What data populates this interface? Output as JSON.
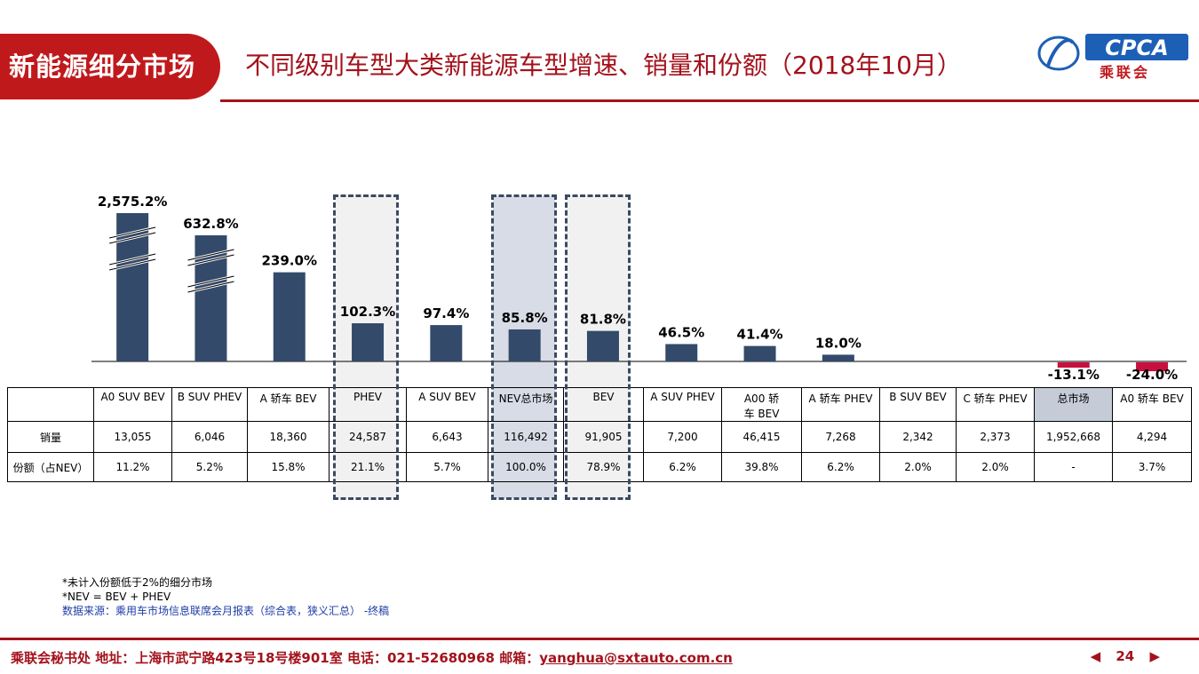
{
  "header": {
    "badge": "新能源细分市场",
    "title": "不同级别车型大类新能源车型增速、销量和份额（2018年10月）",
    "logo_text": "CPCA",
    "logo_cn": "乘联会"
  },
  "chart_data": {
    "type": "bar",
    "categories": [
      "A0 SUV BEV",
      "B SUV PHEV",
      "A 轿车 BEV",
      "PHEV",
      "A SUV BEV",
      "NEV总市场",
      "BEV",
      "A SUV PHEV",
      "A00 轿车 BEV",
      "A 轿车 PHEV",
      "B SUV BEV",
      "C 轿车 PHEV",
      "总市场",
      "A0 轿车 BEV"
    ],
    "values": [
      2575.2,
      632.8,
      239.0,
      102.3,
      97.4,
      85.8,
      81.8,
      46.5,
      41.4,
      18.0,
      null,
      null,
      -13.1,
      -24.0
    ],
    "value_labels": [
      "2,575.2%",
      "632.8%",
      "239.0%",
      "102.3%",
      "97.4%",
      "85.8%",
      "81.8%",
      "46.5%",
      "41.4%",
      "18.0%",
      "",
      "",
      "-13.1%",
      "-24.0%"
    ],
    "axis_break": [
      "A0 SUV BEV",
      "B SUV PHEV"
    ],
    "highlighted": [
      "PHEV",
      "NEV总市场",
      "BEV"
    ],
    "colors": {
      "positive": "#334a6a",
      "negative": "#c8103e",
      "highlight": "#dfe3ea",
      "nev_highlight": "#c9d1de"
    }
  },
  "table": {
    "headers": [
      "A0 SUV BEV",
      "B SUV PHEV",
      "A 轿车 BEV",
      "PHEV",
      "A SUV BEV",
      "NEV总市场",
      "BEV",
      "A SUV PHEV",
      "A00 轿\n车 BEV",
      "A 轿车 PHEV",
      "B SUV BEV",
      "C 轿车 PHEV",
      "总市场",
      "A0 轿车 BEV"
    ],
    "rows": [
      {
        "label": "销量",
        "cells": [
          "13,055",
          "6,046",
          "18,360",
          "24,587",
          "6,643",
          "116,492",
          "91,905",
          "7,200",
          "46,415",
          "7,268",
          "2,342",
          "2,373",
          "1,952,668",
          "4,294"
        ]
      },
      {
        "label": "份额（占NEV）",
        "cells": [
          "11.2%",
          "5.2%",
          "15.8%",
          "21.1%",
          "5.7%",
          "100.0%",
          "78.9%",
          "6.2%",
          "39.8%",
          "6.2%",
          "2.0%",
          "2.0%",
          "-",
          "3.7%"
        ]
      }
    ]
  },
  "notes": {
    "line1": "*未计入份额低于2%的细分市场",
    "line2": "*NEV = BEV + PHEV",
    "source": "数据来源：乘用车市场信息联席会月报表（综合表，狭义汇总） -终稿"
  },
  "footer": {
    "text": "乘联会秘书处 地址：上海市武宁路423号18号楼901室 电话：021-52680968 邮箱：",
    "email": "yanghua@sxtauto.com.cn",
    "page": "24"
  }
}
